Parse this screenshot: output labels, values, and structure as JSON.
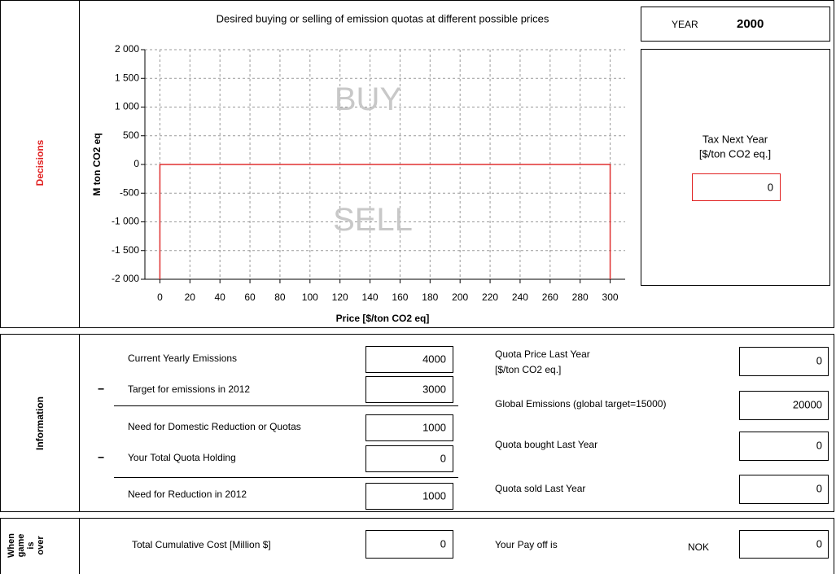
{
  "chart_data": {
    "type": "line",
    "title": "Desired buying or selling of emission quotas at different possible prices",
    "x_label": "Price [$/ton CO2 eq]",
    "y_label": "M ton CO2 eq",
    "annotations": [
      "BUY",
      "SELL"
    ],
    "x": [
      0,
      0,
      300,
      300
    ],
    "series": [
      {
        "color": "#e03030",
        "values": [
          -2000,
          0,
          0,
          -2000
        ]
      }
    ],
    "xlim": [
      -10,
      310
    ],
    "ylim": [
      -2000,
      2000
    ],
    "xticks": [
      0,
      20,
      40,
      60,
      80,
      100,
      120,
      140,
      160,
      180,
      200,
      220,
      240,
      260,
      280,
      300
    ],
    "yticks": [
      {
        "value": 2000,
        "label": "2 000"
      },
      {
        "value": 1500,
        "label": "1 500"
      },
      {
        "value": 1000,
        "label": "1 000"
      },
      500,
      0,
      -500,
      {
        "value": -1000,
        "label": "-1 000"
      },
      {
        "value": -1500,
        "label": "-1 500"
      },
      {
        "value": -2000,
        "label": "-2 000"
      }
    ],
    "grid": true
  },
  "decisions": {
    "label": "Decisions",
    "year_label": "YEAR",
    "year": "2000",
    "tax_label": "Tax Next Year",
    "tax_unit": "[$/ton CO2 eq.]",
    "tax": 0
  },
  "information": {
    "label": "Information",
    "left": [
      {
        "label": "Current Yearly Emissions",
        "value": 4000
      },
      {
        "operator": "−",
        "label": "Target for emissions in 2012",
        "value": 3000
      },
      {
        "label": "Need for Domestic Reduction or Quotas",
        "value": 1000
      },
      {
        "operator": "−",
        "label": "Your Total Quota Holding",
        "value": 0
      },
      {
        "label": "Need for Reduction in 2012",
        "value": 1000
      }
    ],
    "right": [
      {
        "label": "Quota Price Last Year",
        "sublabel": "[$/ton CO2 eq.]",
        "value": 0
      },
      {
        "label": "Global Emissions (global target=15000)",
        "value": 20000
      },
      {
        "label": "Quota bought Last Year",
        "value": 0
      },
      {
        "label": "Quota sold Last Year",
        "value": 0
      }
    ]
  },
  "game_over": {
    "label": [
      "When",
      "game",
      "is",
      "over"
    ],
    "cost_label": "Total Cumulative Cost [Million $]",
    "cost": 0,
    "payoff_label": "Your Pay off is",
    "payoff_unit": "NOK",
    "payoff": 0
  }
}
